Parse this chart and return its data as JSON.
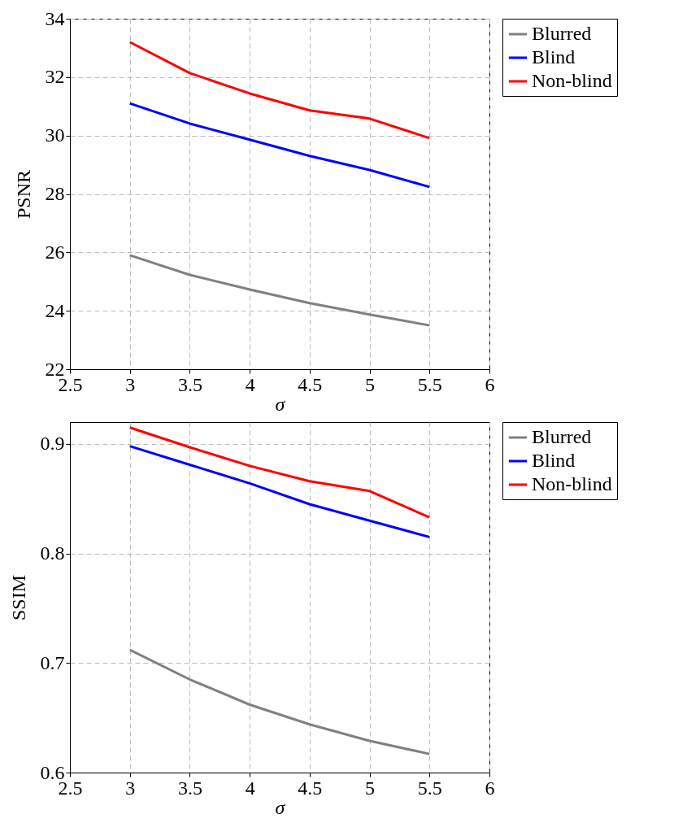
{
  "chart_data": [
    {
      "type": "line",
      "xlabel": "σ",
      "ylabel": "PSNR",
      "x": [
        3,
        3.5,
        4,
        4.5,
        5,
        5.5
      ],
      "xlim": [
        2.5,
        6
      ],
      "xticks": [
        2.5,
        3,
        3.5,
        4,
        4.5,
        5,
        5.5,
        6
      ],
      "ylim": [
        22,
        34
      ],
      "yticks": [
        22,
        24,
        26,
        28,
        30,
        32,
        34
      ],
      "grid": true,
      "legend": "top right",
      "line_style": "solid",
      "series": [
        {
          "name": "Blurred",
          "color": "#808080",
          "values": [
            25.9,
            25.23,
            24.73,
            24.26,
            23.87,
            23.5
          ]
        },
        {
          "name": "Blind",
          "color": "#0000ff",
          "values": [
            31.1,
            30.41,
            29.86,
            29.3,
            28.82,
            28.24
          ]
        },
        {
          "name": "Non-blind",
          "color": "#ff0000",
          "values": [
            33.2,
            32.14,
            31.44,
            30.86,
            30.58,
            29.91
          ]
        }
      ]
    },
    {
      "type": "line",
      "xlabel": "σ",
      "ylabel": "SSIM",
      "x": [
        3,
        3.5,
        4,
        4.5,
        5,
        5.5
      ],
      "xlim": [
        2.5,
        6
      ],
      "xticks": [
        2.5,
        3,
        3.5,
        4,
        4.5,
        5,
        5.5,
        6
      ],
      "ylim": [
        0.6,
        0.92
      ],
      "yticks": [
        0.6,
        0.7,
        0.8,
        0.9
      ],
      "grid": true,
      "legend": "top right",
      "line_style": "solid",
      "series": [
        {
          "name": "Blurred",
          "color": "#808080",
          "values": [
            0.712,
            0.685,
            0.662,
            0.644,
            0.629,
            0.617
          ]
        },
        {
          "name": "Blind",
          "color": "#0000ff",
          "values": [
            0.898,
            0.881,
            0.864,
            0.845,
            0.83,
            0.815
          ]
        },
        {
          "name": "Non-blind",
          "color": "#ff0000",
          "values": [
            0.915,
            0.897,
            0.88,
            0.866,
            0.857,
            0.833
          ]
        }
      ]
    }
  ]
}
